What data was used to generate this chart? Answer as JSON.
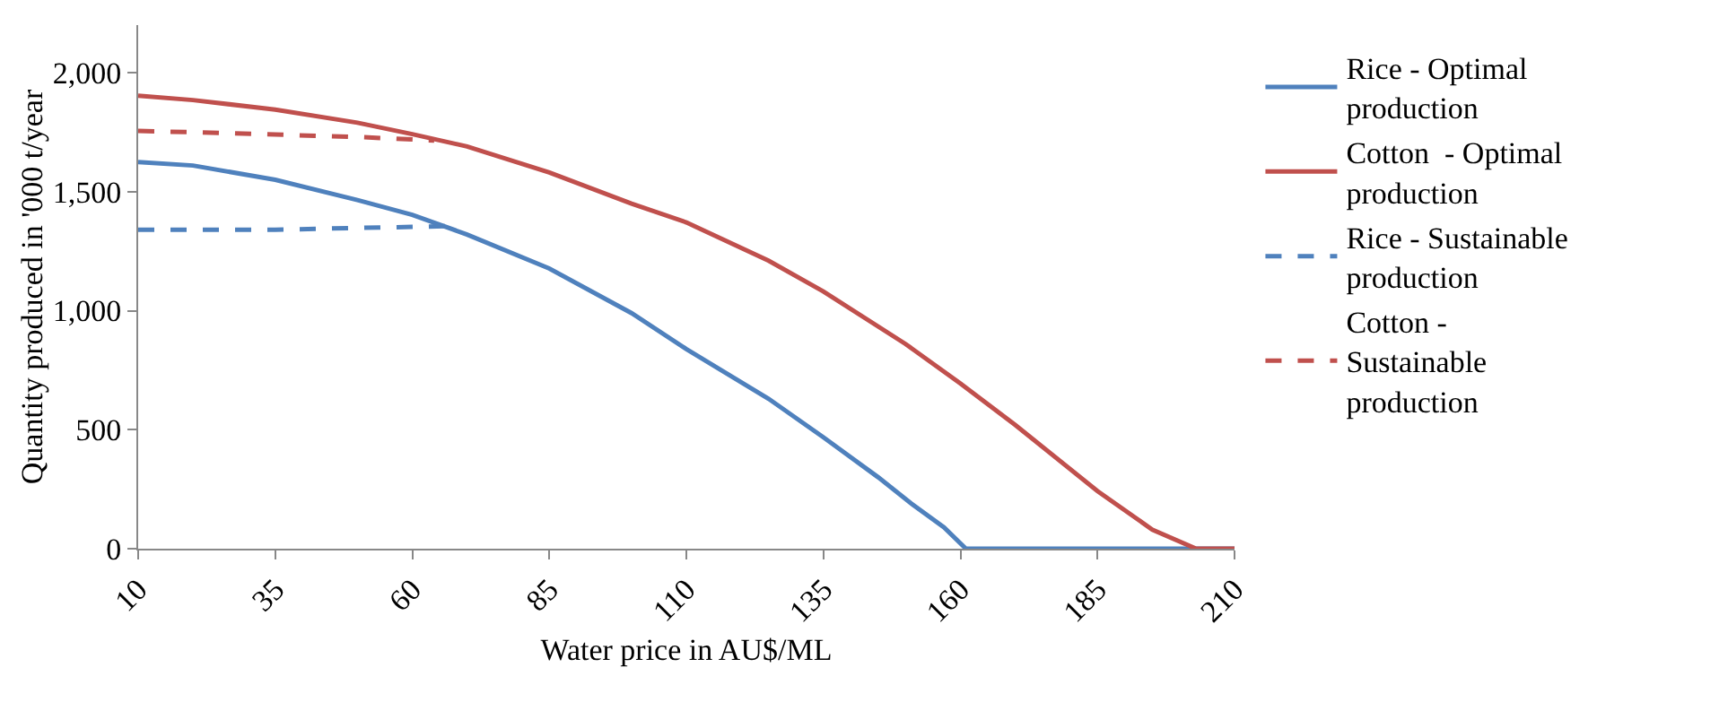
{
  "chart_data": {
    "type": "line",
    "xlabel": "Water price in AU$/ML",
    "ylabel": "Quantity produced in '000 t/year",
    "xlim": [
      10,
      210
    ],
    "xticks": [
      10,
      35,
      60,
      85,
      110,
      135,
      160,
      185,
      210
    ],
    "ylim": [
      0,
      2200
    ],
    "yticks": [
      0,
      500,
      {
        "value": 1000,
        "label": "1,000"
      },
      {
        "value": 1500,
        "label": "1,500"
      },
      {
        "value": 2000,
        "label": "2,000"
      }
    ],
    "grid": false,
    "legend": "right",
    "marker": "none",
    "series": [
      {
        "name": "Rice - Optimal production",
        "color": "#4f81bd",
        "line_style": "solid",
        "x": [
          10,
          20,
          35,
          50,
          60,
          70,
          85,
          100,
          110,
          125,
          135,
          145,
          151,
          157,
          161,
          175,
          190,
          210
        ],
        "values": [
          1625,
          1610,
          1550,
          1465,
          1403,
          1320,
          1177,
          990,
          839,
          630,
          468,
          300,
          190,
          90,
          0,
          0,
          0,
          0
        ]
      },
      {
        "name": "Cotton  - Optimal production",
        "color": "#c0504d",
        "line_style": "solid",
        "x": [
          10,
          20,
          35,
          50,
          60,
          70,
          85,
          100,
          110,
          125,
          135,
          150,
          160,
          170,
          185,
          195,
          203,
          210
        ],
        "values": [
          1903,
          1885,
          1845,
          1790,
          1742,
          1690,
          1581,
          1450,
          1371,
          1210,
          1081,
          860,
          694,
          520,
          242,
          80,
          0,
          0
        ]
      },
      {
        "name": "Rice - Sustainable production",
        "color": "#4f81bd",
        "line_style": "dashed",
        "x": [
          10,
          35,
          50,
          60,
          66
        ],
        "values": [
          1340,
          1340,
          1348,
          1352,
          1355
        ]
      },
      {
        "name": "Cotton - Sustainable production",
        "color": "#c0504d",
        "line_style": "dashed",
        "x": [
          10,
          20,
          35,
          50,
          64
        ],
        "values": [
          1755,
          1750,
          1740,
          1730,
          1715
        ]
      }
    ]
  }
}
